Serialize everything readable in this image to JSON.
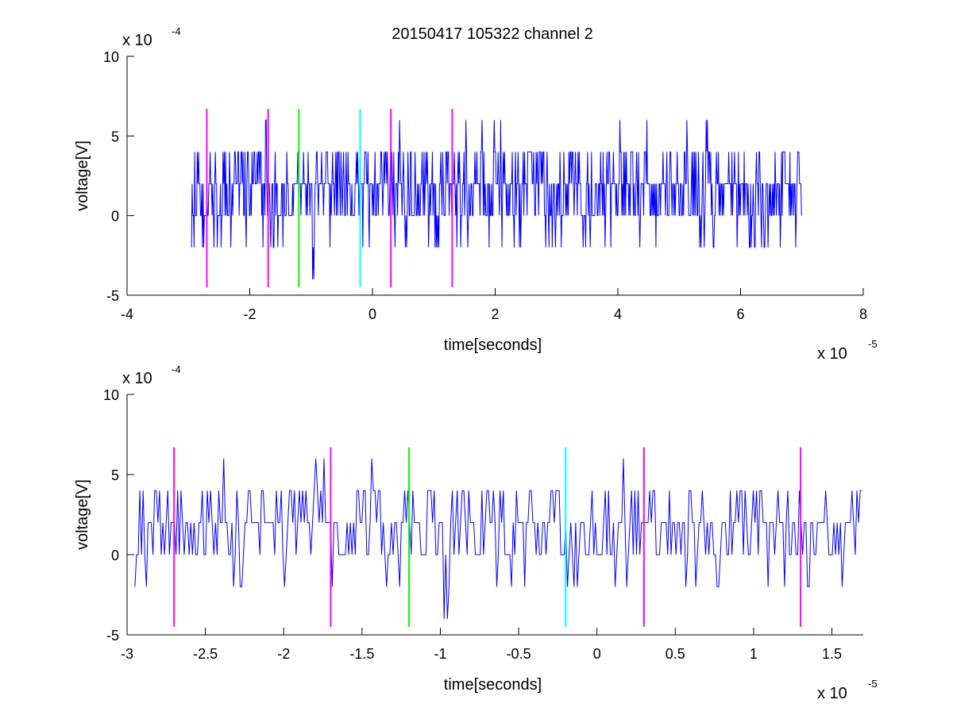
{
  "figure": {
    "title": "20150417 105322 channel 2"
  },
  "chart_data": [
    {
      "type": "line",
      "title": "20150417 105322 channel 2",
      "xlabel": "time[seconds]",
      "ylabel": "voltage[V]",
      "x_multiplier": "x 10",
      "x_multiplier_exp": "-5",
      "y_multiplier": "x 10",
      "y_multiplier_exp": "-4",
      "xlim": [
        -4,
        8
      ],
      "ylim": [
        -5,
        10
      ],
      "xticks": [
        -4,
        -2,
        0,
        2,
        4,
        6,
        8
      ],
      "xtick_labels": [
        "-4",
        "-2",
        "0",
        "2",
        "4",
        "6",
        "8"
      ],
      "yticks": [
        -5,
        0,
        5,
        10
      ],
      "ytick_labels": [
        "-5",
        "0",
        "5",
        "10"
      ],
      "grid": false,
      "signal": {
        "name": "voltage",
        "color": "#0000ff",
        "x_range": [
          -2.95,
          7.0
        ],
        "levels": [
          -4,
          -2,
          0,
          2,
          4,
          6
        ],
        "dominant_level": 2
      },
      "vertical_markers": [
        {
          "x": -2.7,
          "color": "#ff00ff",
          "y_range": [
            -4.5,
            6.7
          ]
        },
        {
          "x": -1.7,
          "color": "#ff00ff",
          "y_range": [
            -4.5,
            6.7
          ]
        },
        {
          "x": -1.2,
          "color": "#00ff00",
          "y_range": [
            -4.5,
            6.7
          ]
        },
        {
          "x": -0.2,
          "color": "#00ffff",
          "y_range": [
            -4.5,
            6.7
          ]
        },
        {
          "x": 0.3,
          "color": "#ff00ff",
          "y_range": [
            -4.5,
            6.7
          ]
        },
        {
          "x": 1.3,
          "color": "#ff00ff",
          "y_range": [
            -4.5,
            6.7
          ]
        }
      ]
    },
    {
      "type": "line",
      "title": "",
      "xlabel": "time[seconds]",
      "ylabel": "voltage[V]",
      "x_multiplier": "x 10",
      "x_multiplier_exp": "-5",
      "y_multiplier": "x 10",
      "y_multiplier_exp": "-4",
      "xlim": [
        -3.0,
        1.7
      ],
      "ylim": [
        -5,
        10
      ],
      "xticks": [
        -3,
        -2.5,
        -2,
        -1.5,
        -1,
        -0.5,
        0,
        0.5,
        1,
        1.5
      ],
      "xtick_labels": [
        "-3",
        "-2.5",
        "-2",
        "-1.5",
        "-1",
        "-0.5",
        "0",
        "0.5",
        "1",
        "1.5"
      ],
      "yticks": [
        -5,
        0,
        5,
        10
      ],
      "ytick_labels": [
        "-5",
        "0",
        "5",
        "10"
      ],
      "grid": false,
      "signal": {
        "name": "voltage",
        "color": "#0000ff",
        "x_range": [
          -2.95,
          1.7
        ],
        "levels": [
          -4,
          -2,
          0,
          2,
          4,
          6
        ],
        "dominant_level": 2
      },
      "vertical_markers": [
        {
          "x": -2.7,
          "color": "#ff00ff",
          "y_range": [
            -4.5,
            6.7
          ]
        },
        {
          "x": -1.7,
          "color": "#ff00ff",
          "y_range": [
            -4.5,
            6.7
          ]
        },
        {
          "x": -1.2,
          "color": "#00ff00",
          "y_range": [
            -4.5,
            6.7
          ]
        },
        {
          "x": -0.2,
          "color": "#00ffff",
          "y_range": [
            -4.5,
            6.7
          ]
        },
        {
          "x": 0.3,
          "color": "#ff00ff",
          "y_range": [
            -4.5,
            6.7
          ]
        },
        {
          "x": 1.3,
          "color": "#ff00ff",
          "y_range": [
            -4.5,
            6.7
          ]
        }
      ]
    }
  ]
}
